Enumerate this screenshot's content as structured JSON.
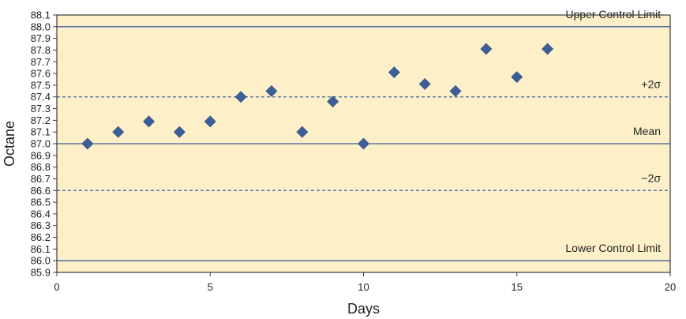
{
  "chart_data": {
    "type": "scatter",
    "xlabel": "Days",
    "ylabel": "Octane",
    "xlim": [
      0,
      20
    ],
    "ylim": [
      85.9,
      88.1
    ],
    "x_ticks": [
      "0",
      "5",
      "10",
      "15",
      "20"
    ],
    "y_ticks": [
      "88.1",
      "88.0",
      "87.9",
      "87.8",
      "87.7",
      "87.6",
      "87.5",
      "87.4",
      "87.3",
      "87.2",
      "87.1",
      "87.0",
      "86.9",
      "86.8",
      "86.7",
      "86.6",
      "86.5",
      "86.4",
      "86.3",
      "86.2",
      "86.1",
      "86.0",
      "85.9"
    ],
    "grid": false,
    "legend": "none",
    "colors": {
      "plot_background": "#fdf0c9",
      "marker": "#3d5f99",
      "reference_line": "#3d5f99",
      "frame": "#3a3a3a"
    },
    "reference_lines": [
      {
        "label": "Upper Control Limit",
        "y": 88.0,
        "style": "solid"
      },
      {
        "label": "+2σ",
        "y": 87.4,
        "style": "dashed"
      },
      {
        "label": "Mean",
        "y": 87.0,
        "style": "solid"
      },
      {
        "label": "−2σ",
        "y": 86.6,
        "style": "dashed"
      },
      {
        "label": "Lower Control Limit",
        "y": 86.0,
        "style": "solid"
      }
    ],
    "x": [
      1,
      2,
      3,
      4,
      5,
      6,
      7,
      8,
      9,
      10,
      11,
      12,
      13,
      14,
      15,
      16
    ],
    "y": [
      87.0,
      87.1,
      87.19,
      87.1,
      87.19,
      87.4,
      87.45,
      87.1,
      87.36,
      87.0,
      87.61,
      87.51,
      87.45,
      87.81,
      87.57,
      87.81
    ]
  }
}
